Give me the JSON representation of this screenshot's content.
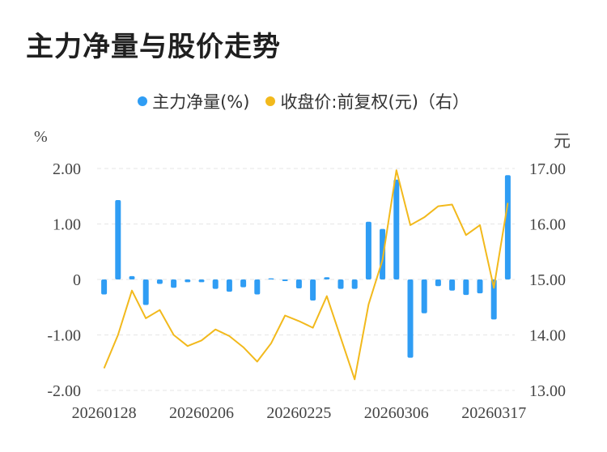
{
  "title": "主力净量与股价走势",
  "units": {
    "left": "%",
    "right": "元"
  },
  "colors": {
    "bar": "#2f9df4",
    "line": "#f2b91c",
    "grid": "#e6e6e6"
  },
  "chart_data": {
    "type": "bar",
    "series": [
      {
        "name": "主力净量(%)",
        "type": "bar",
        "axis": "left",
        "values": [
          -0.27,
          1.43,
          0.06,
          -0.46,
          -0.08,
          -0.15,
          -0.05,
          -0.05,
          -0.17,
          -0.22,
          -0.14,
          -0.27,
          0.02,
          -0.03,
          -0.16,
          -0.38,
          0.04,
          -0.17,
          -0.17,
          1.04,
          0.91,
          1.8,
          -1.41,
          -0.61,
          -0.12,
          -0.2,
          -0.28,
          -0.25,
          -0.72,
          1.88
        ]
      },
      {
        "name": "收盘价:前复权(元)（右）",
        "type": "line",
        "axis": "right",
        "values": [
          13.4,
          14.0,
          14.8,
          14.3,
          14.45,
          14.0,
          13.8,
          13.9,
          14.1,
          13.98,
          13.78,
          13.52,
          13.85,
          14.35,
          14.25,
          14.13,
          14.7,
          13.95,
          13.2,
          14.55,
          15.35,
          16.97,
          15.98,
          16.12,
          16.32,
          16.35,
          15.8,
          15.98,
          14.85,
          16.38
        ]
      }
    ],
    "x_tick_labels": [
      "20260128",
      "20260206",
      "20260225",
      "20260306",
      "20260317"
    ],
    "x_tick_index": [
      0,
      7,
      14,
      21,
      28
    ],
    "yleft_ticks": [
      "2.00",
      "1.00",
      "0",
      "-1.00",
      "-2.00"
    ],
    "yleft_lim": [
      -2,
      2
    ],
    "yright_ticks": [
      "17.00",
      "16.00",
      "15.00",
      "14.00",
      "13.00"
    ],
    "yright_lim": [
      13,
      17
    ],
    "grid": true,
    "legend_position": "top-center"
  }
}
